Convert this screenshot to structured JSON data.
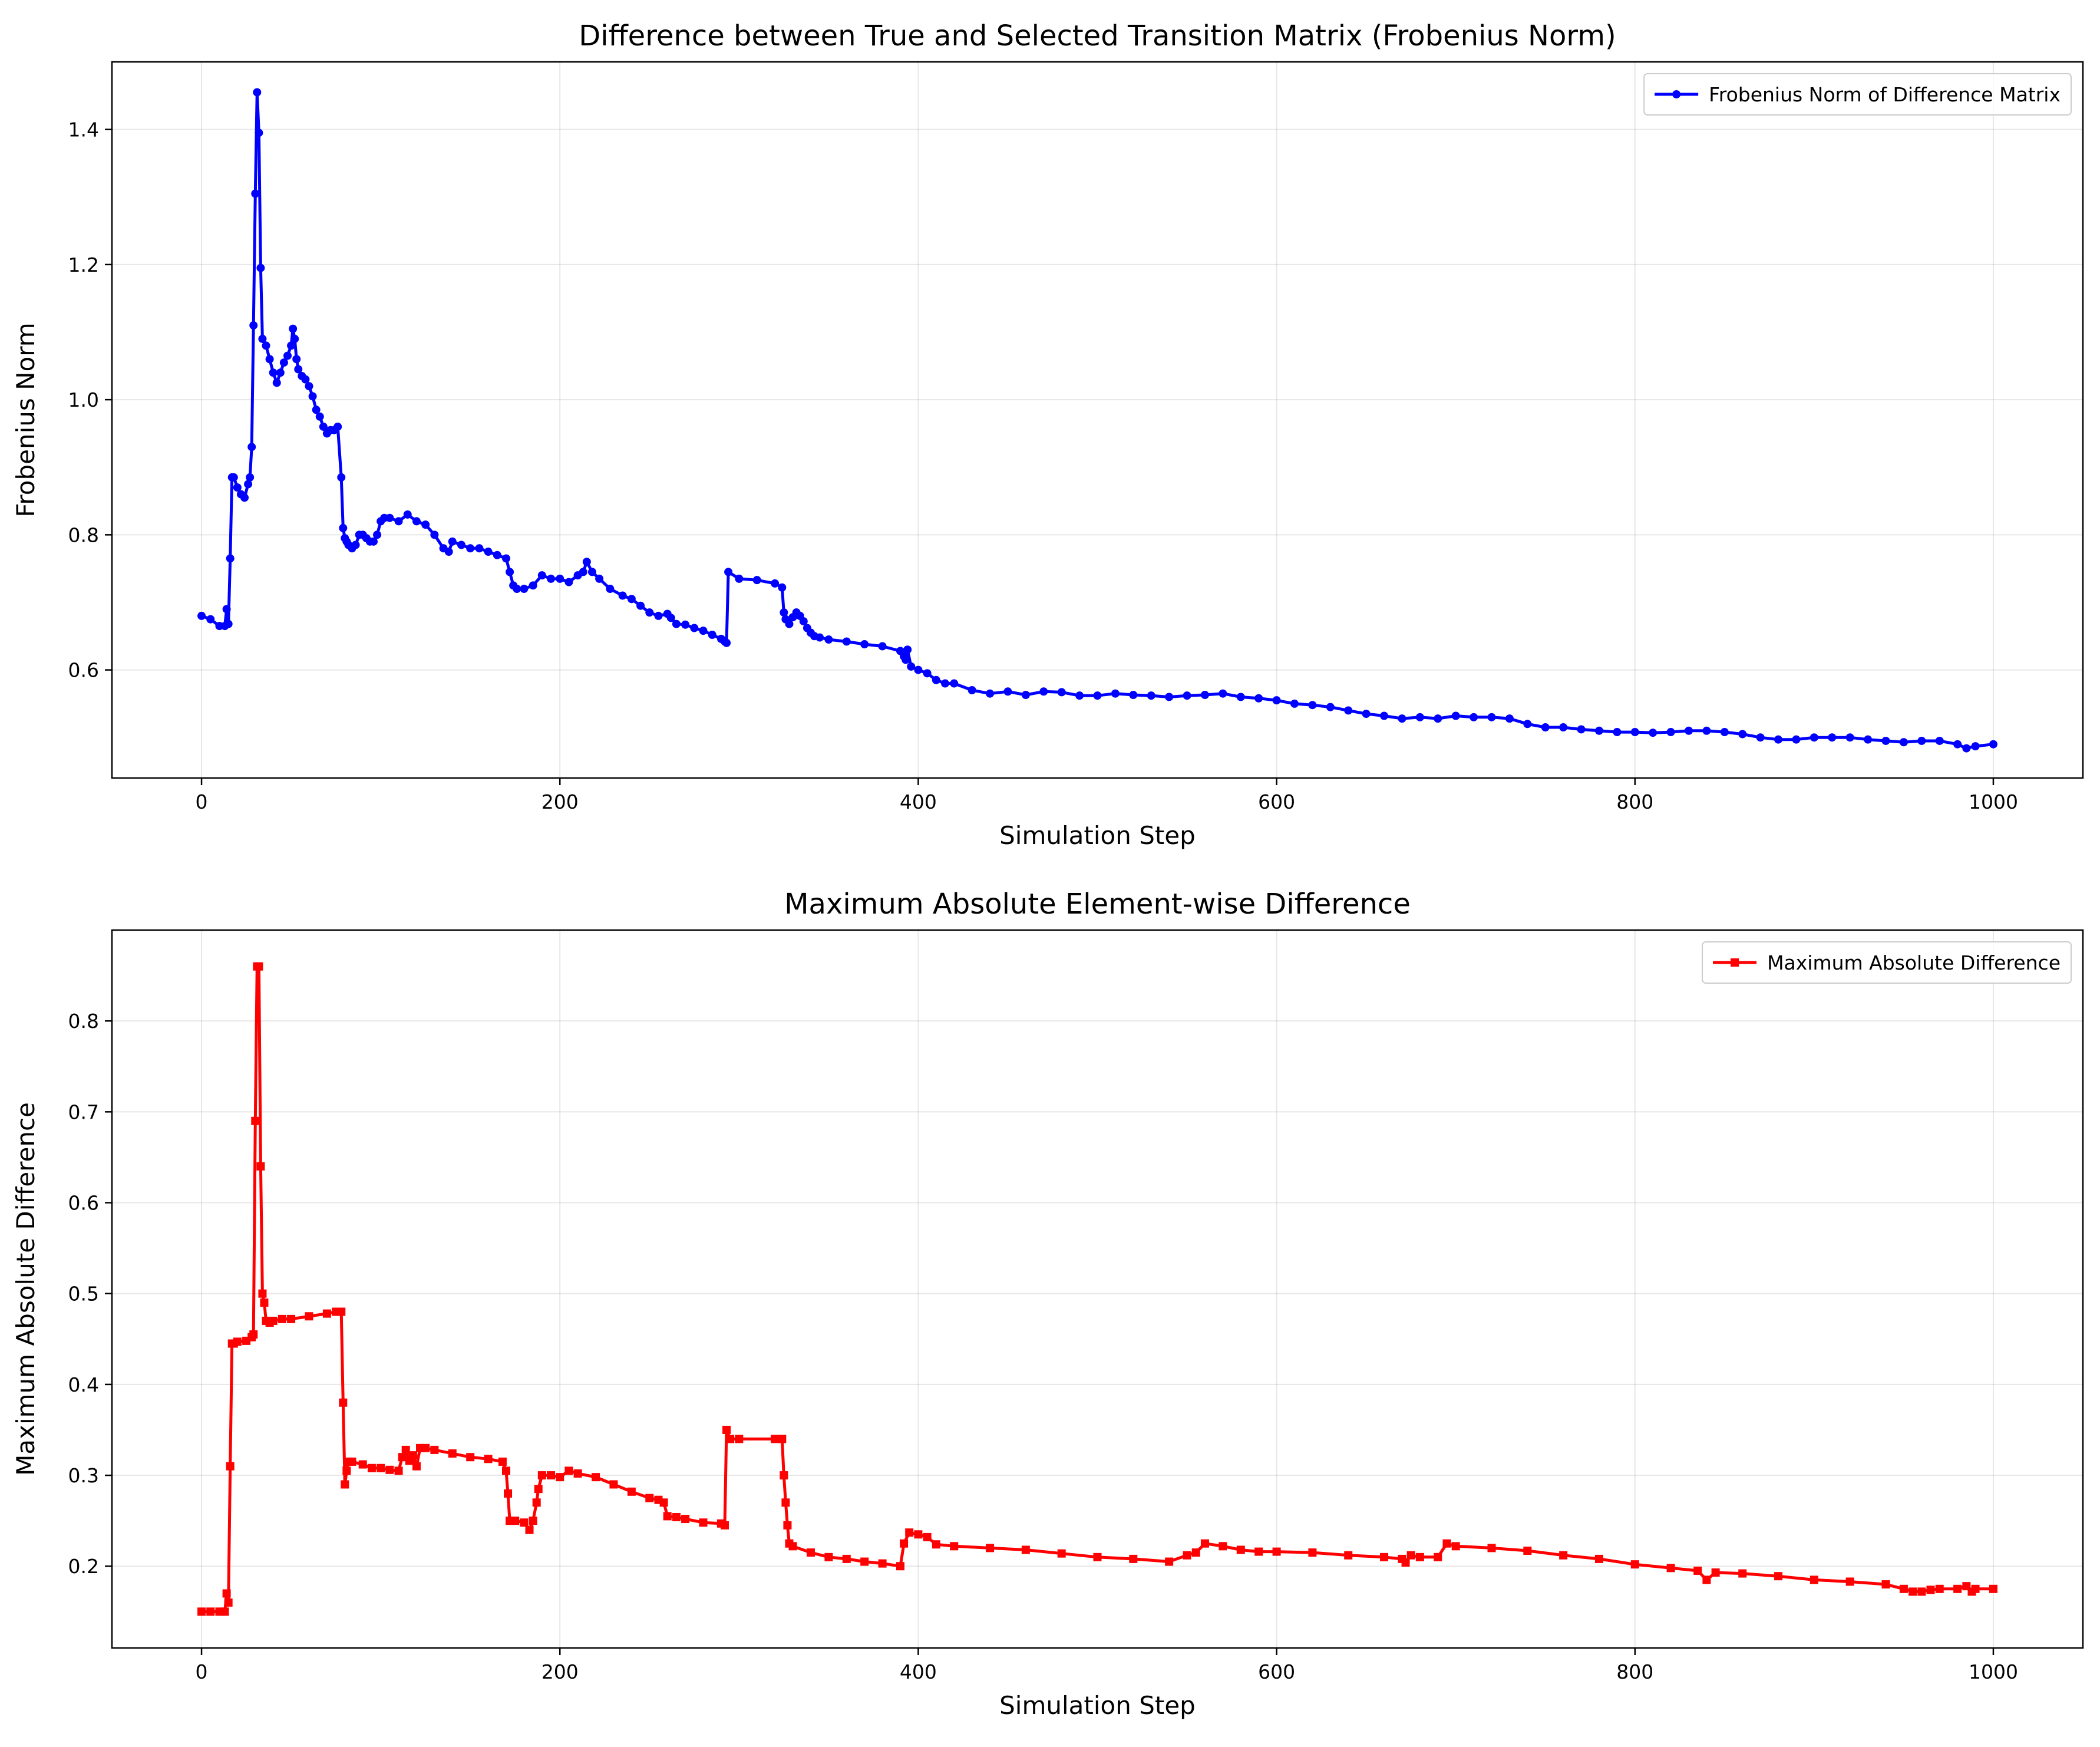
{
  "chart_data": [
    {
      "type": "line",
      "title": "Difference between True and Selected Transition Matrix (Frobenius Norm)",
      "xlabel": "Simulation Step",
      "ylabel": "Frobenius Norm",
      "xlim": [
        -50,
        1050
      ],
      "ylim": [
        0.44,
        1.5
      ],
      "xticks": [
        0,
        200,
        400,
        600,
        800,
        1000
      ],
      "yticks": [
        0.6,
        0.8,
        1.0,
        1.2,
        1.4
      ],
      "xtick_labels": [
        "0",
        "200",
        "400",
        "600",
        "800",
        "1000"
      ],
      "ytick_labels": [
        "0.6",
        "0.8",
        "1.0",
        "1.2",
        "1.4"
      ],
      "grid": true,
      "legend_position": "top-right",
      "series": [
        {
          "name": "Frobenius Norm of Difference Matrix",
          "color": "#0000ff",
          "marker": "circle",
          "x": [
            0,
            5,
            10,
            13,
            14,
            15,
            16,
            17,
            18,
            20,
            22,
            24,
            26,
            27,
            28,
            29,
            30,
            31,
            32,
            33,
            34,
            36,
            38,
            40,
            42,
            44,
            46,
            48,
            50,
            51,
            52,
            53,
            54,
            56,
            58,
            60,
            62,
            64,
            66,
            68,
            70,
            72,
            74,
            76,
            78,
            79,
            80,
            81,
            82,
            84,
            86,
            88,
            90,
            92,
            94,
            96,
            98,
            100,
            102,
            105,
            110,
            115,
            120,
            125,
            130,
            135,
            138,
            140,
            145,
            150,
            155,
            160,
            165,
            170,
            172,
            174,
            176,
            180,
            185,
            190,
            195,
            200,
            205,
            210,
            213,
            215,
            218,
            222,
            228,
            235,
            240,
            245,
            250,
            255,
            260,
            262,
            265,
            270,
            275,
            280,
            285,
            290,
            292,
            293,
            294,
            300,
            310,
            320,
            324,
            325,
            326,
            328,
            330,
            332,
            334,
            336,
            338,
            340,
            342,
            345,
            350,
            360,
            370,
            380,
            390,
            392,
            393,
            394,
            396,
            400,
            405,
            410,
            415,
            420,
            430,
            440,
            450,
            460,
            470,
            480,
            490,
            500,
            510,
            520,
            530,
            540,
            550,
            560,
            570,
            580,
            590,
            600,
            610,
            620,
            630,
            640,
            650,
            660,
            670,
            680,
            690,
            700,
            710,
            720,
            730,
            740,
            750,
            760,
            770,
            780,
            790,
            800,
            810,
            820,
            830,
            840,
            850,
            860,
            870,
            880,
            890,
            900,
            910,
            920,
            930,
            940,
            950,
            960,
            970,
            980,
            985,
            990,
            1000
          ],
          "y": [
            0.68,
            0.675,
            0.665,
            0.665,
            0.69,
            0.668,
            0.765,
            0.885,
            0.885,
            0.87,
            0.86,
            0.855,
            0.875,
            0.885,
            0.93,
            1.11,
            1.305,
            1.455,
            1.395,
            1.195,
            1.09,
            1.08,
            1.06,
            1.04,
            1.025,
            1.04,
            1.055,
            1.065,
            1.08,
            1.105,
            1.09,
            1.06,
            1.045,
            1.035,
            1.03,
            1.02,
            1.005,
            0.985,
            0.975,
            0.96,
            0.95,
            0.955,
            0.955,
            0.96,
            0.885,
            0.81,
            0.795,
            0.79,
            0.785,
            0.78,
            0.785,
            0.8,
            0.8,
            0.795,
            0.79,
            0.79,
            0.8,
            0.82,
            0.825,
            0.825,
            0.82,
            0.83,
            0.82,
            0.815,
            0.8,
            0.78,
            0.775,
            0.79,
            0.785,
            0.78,
            0.78,
            0.775,
            0.77,
            0.765,
            0.745,
            0.725,
            0.72,
            0.72,
            0.725,
            0.74,
            0.735,
            0.735,
            0.73,
            0.74,
            0.745,
            0.76,
            0.745,
            0.735,
            0.72,
            0.71,
            0.705,
            0.695,
            0.685,
            0.68,
            0.683,
            0.677,
            0.668,
            0.667,
            0.662,
            0.658,
            0.652,
            0.646,
            0.642,
            0.64,
            0.745,
            0.735,
            0.733,
            0.728,
            0.722,
            0.685,
            0.675,
            0.668,
            0.678,
            0.685,
            0.68,
            0.672,
            0.662,
            0.655,
            0.65,
            0.648,
            0.645,
            0.642,
            0.638,
            0.635,
            0.628,
            0.62,
            0.615,
            0.63,
            0.605,
            0.6,
            0.595,
            0.585,
            0.58,
            0.58,
            0.57,
            0.565,
            0.568,
            0.563,
            0.568,
            0.567,
            0.562,
            0.562,
            0.565,
            0.563,
            0.562,
            0.56,
            0.562,
            0.563,
            0.565,
            0.56,
            0.558,
            0.555,
            0.55,
            0.548,
            0.545,
            0.54,
            0.535,
            0.532,
            0.528,
            0.53,
            0.528,
            0.532,
            0.53,
            0.53,
            0.528,
            0.52,
            0.515,
            0.515,
            0.512,
            0.51,
            0.508,
            0.508,
            0.507,
            0.508,
            0.51,
            0.51,
            0.508,
            0.505,
            0.5,
            0.497,
            0.497,
            0.5,
            0.5,
            0.5,
            0.497,
            0.495,
            0.493,
            0.495,
            0.495,
            0.49,
            0.484,
            0.487,
            0.49
          ]
        }
      ]
    },
    {
      "type": "line",
      "title": "Maximum Absolute Element-wise Difference",
      "xlabel": "Simulation Step",
      "ylabel": "Maximum Absolute Difference",
      "xlim": [
        -50,
        1050
      ],
      "ylim": [
        0.11,
        0.9
      ],
      "xticks": [
        0,
        200,
        400,
        600,
        800,
        1000
      ],
      "yticks": [
        0.2,
        0.3,
        0.4,
        0.5,
        0.6,
        0.7,
        0.8
      ],
      "xtick_labels": [
        "0",
        "200",
        "400",
        "600",
        "800",
        "1000"
      ],
      "ytick_labels": [
        "0.2",
        "0.3",
        "0.4",
        "0.5",
        "0.6",
        "0.7",
        "0.8"
      ],
      "grid": true,
      "legend_position": "top-right",
      "series": [
        {
          "name": "Maximum Absolute Difference",
          "color": "#ff0000",
          "marker": "square",
          "x": [
            0,
            5,
            10,
            13,
            14,
            15,
            16,
            17,
            18,
            20,
            25,
            28,
            29,
            30,
            31,
            32,
            33,
            34,
            35,
            36,
            38,
            40,
            45,
            50,
            60,
            70,
            75,
            78,
            79,
            80,
            81,
            82,
            84,
            90,
            95,
            100,
            105,
            110,
            112,
            114,
            116,
            118,
            120,
            122,
            125,
            130,
            140,
            150,
            160,
            168,
            170,
            171,
            172,
            175,
            180,
            183,
            185,
            187,
            188,
            190,
            195,
            200,
            205,
            210,
            220,
            230,
            240,
            250,
            255,
            258,
            260,
            265,
            270,
            280,
            290,
            292,
            293,
            295,
            300,
            320,
            324,
            325,
            326,
            327,
            328,
            330,
            340,
            350,
            360,
            370,
            380,
            390,
            392,
            395,
            400,
            405,
            410,
            420,
            440,
            460,
            480,
            500,
            520,
            540,
            550,
            555,
            560,
            570,
            580,
            590,
            600,
            620,
            640,
            660,
            670,
            672,
            675,
            680,
            690,
            695,
            700,
            720,
            740,
            760,
            780,
            800,
            820,
            835,
            840,
            845,
            860,
            880,
            900,
            920,
            940,
            950,
            955,
            960,
            965,
            970,
            980,
            985,
            988,
            990,
            1000
          ],
          "y": [
            0.15,
            0.15,
            0.15,
            0.15,
            0.17,
            0.16,
            0.31,
            0.445,
            0.445,
            0.447,
            0.448,
            0.452,
            0.455,
            0.69,
            0.86,
            0.86,
            0.64,
            0.5,
            0.49,
            0.47,
            0.468,
            0.47,
            0.472,
            0.472,
            0.475,
            0.478,
            0.48,
            0.48,
            0.38,
            0.29,
            0.305,
            0.315,
            0.315,
            0.312,
            0.308,
            0.308,
            0.306,
            0.305,
            0.32,
            0.328,
            0.316,
            0.322,
            0.31,
            0.33,
            0.33,
            0.328,
            0.324,
            0.32,
            0.318,
            0.315,
            0.305,
            0.28,
            0.25,
            0.25,
            0.248,
            0.24,
            0.25,
            0.27,
            0.285,
            0.3,
            0.3,
            0.298,
            0.305,
            0.302,
            0.298,
            0.29,
            0.282,
            0.275,
            0.273,
            0.27,
            0.255,
            0.254,
            0.252,
            0.248,
            0.247,
            0.245,
            0.35,
            0.34,
            0.34,
            0.34,
            0.34,
            0.3,
            0.27,
            0.245,
            0.225,
            0.222,
            0.215,
            0.21,
            0.208,
            0.205,
            0.203,
            0.2,
            0.225,
            0.237,
            0.235,
            0.232,
            0.224,
            0.222,
            0.22,
            0.218,
            0.214,
            0.21,
            0.208,
            0.205,
            0.212,
            0.215,
            0.225,
            0.222,
            0.218,
            0.216,
            0.216,
            0.215,
            0.212,
            0.21,
            0.208,
            0.204,
            0.212,
            0.21,
            0.21,
            0.225,
            0.222,
            0.22,
            0.217,
            0.212,
            0.208,
            0.202,
            0.198,
            0.195,
            0.185,
            0.193,
            0.192,
            0.189,
            0.185,
            0.183,
            0.18,
            0.175,
            0.172,
            0.172,
            0.174,
            0.175,
            0.175,
            0.178,
            0.172,
            0.175,
            0.175
          ]
        }
      ]
    }
  ]
}
